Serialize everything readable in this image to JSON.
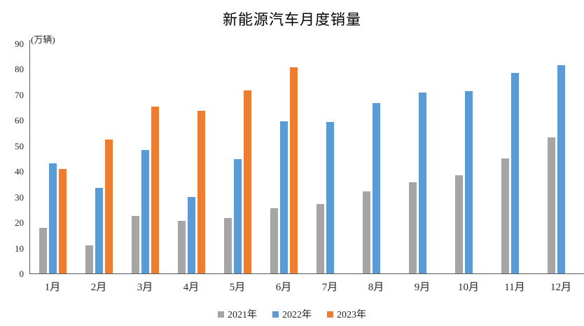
{
  "chart_data": {
    "type": "bar",
    "title": "新能源汽车月度销量",
    "unit_label": "(万辆)",
    "categories": [
      "1月",
      "2月",
      "3月",
      "4月",
      "5月",
      "6月",
      "7月",
      "8月",
      "9月",
      "10月",
      "11月",
      "12月"
    ],
    "series": [
      {
        "name": "2021年",
        "color": "#A5A5A5",
        "values": [
          17.9,
          11.0,
          22.6,
          20.6,
          21.7,
          25.6,
          27.1,
          32.1,
          35.7,
          38.3,
          45.0,
          53.1
        ]
      },
      {
        "name": "2022年",
        "color": "#5B9BD5",
        "values": [
          43.1,
          33.4,
          48.4,
          29.9,
          44.7,
          59.6,
          59.3,
          66.6,
          70.8,
          71.4,
          78.6,
          81.4
        ]
      },
      {
        "name": "2023年",
        "color": "#ED7D31",
        "values": [
          40.8,
          52.5,
          65.3,
          63.6,
          71.7,
          80.6,
          null,
          null,
          null,
          null,
          null,
          null
        ]
      }
    ],
    "xlabel": "",
    "ylabel": "(万辆)",
    "ylim": [
      0,
      90
    ],
    "yticks": [
      0,
      10,
      20,
      30,
      40,
      50,
      60,
      70,
      80,
      90
    ],
    "grid": false,
    "legend_position": "bottom",
    "axis_color": "#595959",
    "text_color": "#262626"
  }
}
